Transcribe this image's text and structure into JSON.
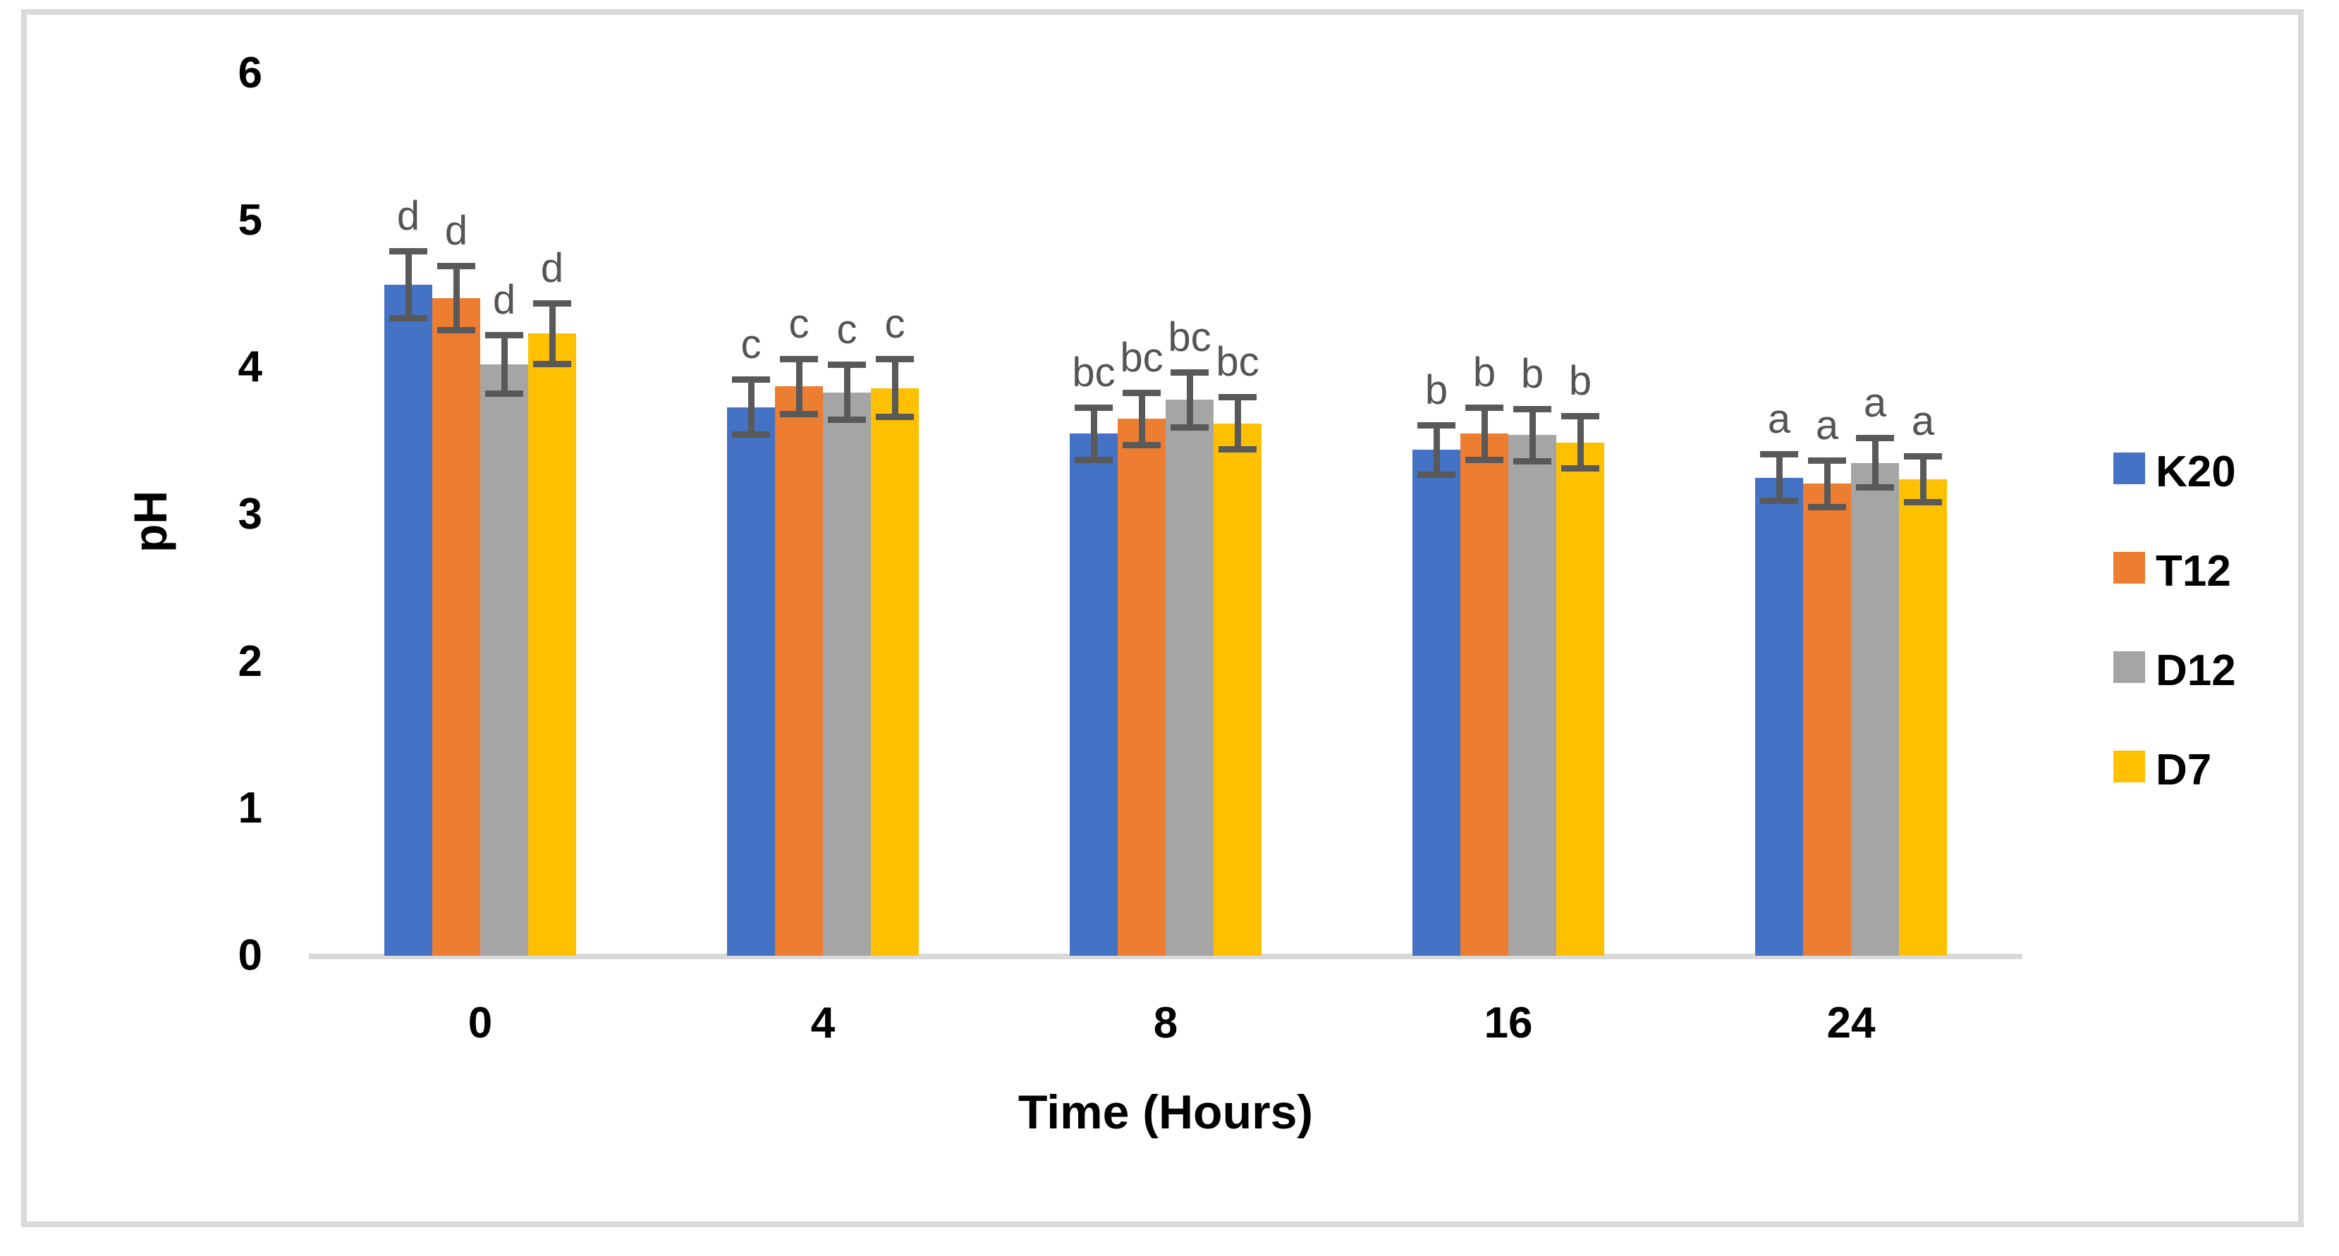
{
  "chart_data": {
    "type": "bar",
    "title": "",
    "xlabel": "Time (Hours)",
    "ylabel": "pH",
    "categories": [
      "0",
      "4",
      "8",
      "16",
      "24"
    ],
    "y_ticks": [
      0,
      1,
      2,
      3,
      4,
      5,
      6
    ],
    "ylim": [
      0,
      6
    ],
    "grid": false,
    "legend_position": "right",
    "axis_line_color": "#D9D9D9",
    "error_bar_color": "#595959",
    "significance_letter_color": "#545454",
    "series": [
      {
        "name": "K20",
        "color": "#4472C4",
        "values": [
          4.56,
          3.73,
          3.55,
          3.44,
          3.25
        ],
        "errors": [
          0.23,
          0.19,
          0.18,
          0.17,
          0.16
        ],
        "letters": [
          "d",
          "c",
          "bc",
          "b",
          "a"
        ]
      },
      {
        "name": "T12",
        "color": "#ED7D31",
        "values": [
          4.47,
          3.87,
          3.65,
          3.55,
          3.21
        ],
        "errors": [
          0.22,
          0.19,
          0.18,
          0.18,
          0.16
        ],
        "letters": [
          "d",
          "c",
          "bc",
          "b",
          "a"
        ]
      },
      {
        "name": "D12",
        "color": "#A5A5A5",
        "values": [
          4.02,
          3.83,
          3.78,
          3.54,
          3.35
        ],
        "errors": [
          0.2,
          0.19,
          0.19,
          0.18,
          0.17
        ],
        "letters": [
          "d",
          "c",
          "bc",
          "b",
          "a"
        ]
      },
      {
        "name": "D7",
        "color": "#FFC000",
        "values": [
          4.23,
          3.86,
          3.62,
          3.49,
          3.24
        ],
        "errors": [
          0.21,
          0.2,
          0.18,
          0.18,
          0.16
        ],
        "letters": [
          "d",
          "c",
          "bc",
          "b",
          "a"
        ]
      }
    ],
    "legend": [
      "K20",
      "T12",
      "D12",
      "D7"
    ]
  }
}
